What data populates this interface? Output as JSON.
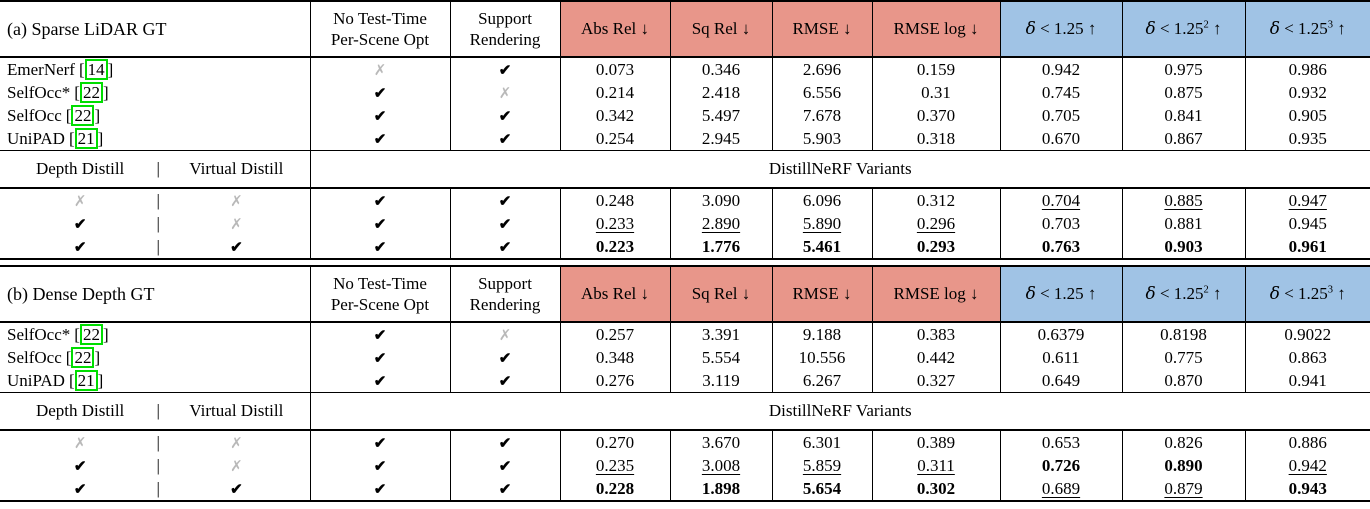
{
  "config": {
    "colors": {
      "metric_header_bg": "#e8968a",
      "delta_header_bg": "#a0c3e5",
      "cite_border": "#00dd00",
      "cross_gray": "#b9b9b9"
    },
    "glyphs": {
      "check": "✔",
      "cross": "✗",
      "pipe": "|"
    },
    "cite_open": "[",
    "cite_close": "]"
  },
  "columns": {
    "opt_header": [
      "No Test-Time",
      "Per-Scene Opt"
    ],
    "support_header": [
      "Support",
      "Rendering"
    ],
    "metric_headers": [
      "Abs Rel ↓",
      "Sq Rel ↓",
      "RMSE ↓",
      "RMSE log ↓"
    ],
    "delta_headers": [
      {
        "sym": "δ",
        "rest": " < 1.25",
        "sup": "",
        "arrow": " ↑"
      },
      {
        "sym": "δ",
        "rest": " < 1.25",
        "sup": "2",
        "arrow": " ↑"
      },
      {
        "sym": "δ",
        "rest": " < 1.25",
        "sup": "3",
        "arrow": " ↑"
      }
    ]
  },
  "variant_header": {
    "left_label": "Depth Distill",
    "right_label": "Virtual Distill",
    "span_label": "DistillNeRF Variants"
  },
  "sections": [
    {
      "id": "a",
      "title": "(a) Sparse LiDAR GT",
      "baselines": [
        {
          "name": "EmerNerf",
          "cite": "14",
          "no_opt": "cross",
          "support": "check",
          "values": [
            "0.073",
            "0.346",
            "2.696",
            "0.159",
            "0.942",
            "0.975",
            "0.986"
          ],
          "styles": [
            "n",
            "n",
            "n",
            "n",
            "n",
            "n",
            "n"
          ]
        },
        {
          "name": "SelfOcc*",
          "cite": "22",
          "no_opt": "check",
          "support": "cross",
          "values": [
            "0.214",
            "2.418",
            "6.556",
            "0.31",
            "0.745",
            "0.875",
            "0.932"
          ],
          "styles": [
            "n",
            "n",
            "n",
            "n",
            "n",
            "n",
            "n"
          ]
        },
        {
          "name": "SelfOcc",
          "cite": "22",
          "no_opt": "check",
          "support": "check",
          "values": [
            "0.342",
            "5.497",
            "7.678",
            "0.370",
            "0.705",
            "0.841",
            "0.905"
          ],
          "styles": [
            "n",
            "n",
            "n",
            "n",
            "n",
            "n",
            "n"
          ]
        },
        {
          "name": "UniPAD",
          "cite": "21",
          "no_opt": "check",
          "support": "check",
          "values": [
            "0.254",
            "2.945",
            "5.903",
            "0.318",
            "0.670",
            "0.867",
            "0.935"
          ],
          "styles": [
            "n",
            "n",
            "n",
            "n",
            "n",
            "n",
            "n"
          ]
        }
      ],
      "variants": [
        {
          "depth": "cross",
          "virtual": "cross",
          "no_opt": "check",
          "support": "check",
          "values": [
            "0.248",
            "3.090",
            "6.096",
            "0.312",
            "0.704",
            "0.885",
            "0.947"
          ],
          "styles": [
            "n",
            "n",
            "n",
            "n",
            "u",
            "u",
            "u"
          ]
        },
        {
          "depth": "check",
          "virtual": "cross",
          "no_opt": "check",
          "support": "check",
          "values": [
            "0.233",
            "2.890",
            "5.890",
            "0.296",
            "0.703",
            "0.881",
            "0.945"
          ],
          "styles": [
            "u",
            "u",
            "u",
            "u",
            "n",
            "n",
            "n"
          ]
        },
        {
          "depth": "check",
          "virtual": "check",
          "no_opt": "check",
          "support": "check",
          "values": [
            "0.223",
            "1.776",
            "5.461",
            "0.293",
            "0.763",
            "0.903",
            "0.961"
          ],
          "styles": [
            "b",
            "b",
            "b",
            "b",
            "b",
            "b",
            "b"
          ]
        }
      ]
    },
    {
      "id": "b",
      "title": "(b) Dense Depth GT",
      "baselines": [
        {
          "name": "SelfOcc*",
          "cite": "22",
          "no_opt": "check",
          "support": "cross",
          "values": [
            "0.257",
            "3.391",
            "9.188",
            "0.383",
            "0.6379",
            "0.8198",
            "0.9022"
          ],
          "styles": [
            "n",
            "n",
            "n",
            "n",
            "n",
            "n",
            "n"
          ]
        },
        {
          "name": "SelfOcc",
          "cite": "22",
          "no_opt": "check",
          "support": "check",
          "values": [
            "0.348",
            "5.554",
            "10.556",
            "0.442",
            "0.611",
            "0.775",
            "0.863"
          ],
          "styles": [
            "n",
            "n",
            "n",
            "n",
            "n",
            "n",
            "n"
          ]
        },
        {
          "name": "UniPAD",
          "cite": "21",
          "no_opt": "check",
          "support": "check",
          "values": [
            "0.276",
            "3.119",
            "6.267",
            "0.327",
            "0.649",
            "0.870",
            "0.941"
          ],
          "styles": [
            "n",
            "n",
            "n",
            "n",
            "n",
            "n",
            "n"
          ]
        }
      ],
      "variants": [
        {
          "depth": "cross",
          "virtual": "cross",
          "no_opt": "check",
          "support": "check",
          "values": [
            "0.270",
            "3.670",
            "6.301",
            "0.389",
            "0.653",
            "0.826",
            "0.886"
          ],
          "styles": [
            "n",
            "n",
            "n",
            "n",
            "n",
            "n",
            "n"
          ]
        },
        {
          "depth": "check",
          "virtual": "cross",
          "no_opt": "check",
          "support": "check",
          "values": [
            "0.235",
            "3.008",
            "5.859",
            "0.311",
            "0.726",
            "0.890",
            "0.942"
          ],
          "styles": [
            "u",
            "u",
            "u",
            "u",
            "b",
            "b",
            "u"
          ]
        },
        {
          "depth": "check",
          "virtual": "check",
          "no_opt": "check",
          "support": "check",
          "values": [
            "0.228",
            "1.898",
            "5.654",
            "0.302",
            "0.689",
            "0.879",
            "0.943"
          ],
          "styles": [
            "b",
            "b",
            "b",
            "b",
            "u",
            "u",
            "b"
          ]
        }
      ]
    }
  ]
}
